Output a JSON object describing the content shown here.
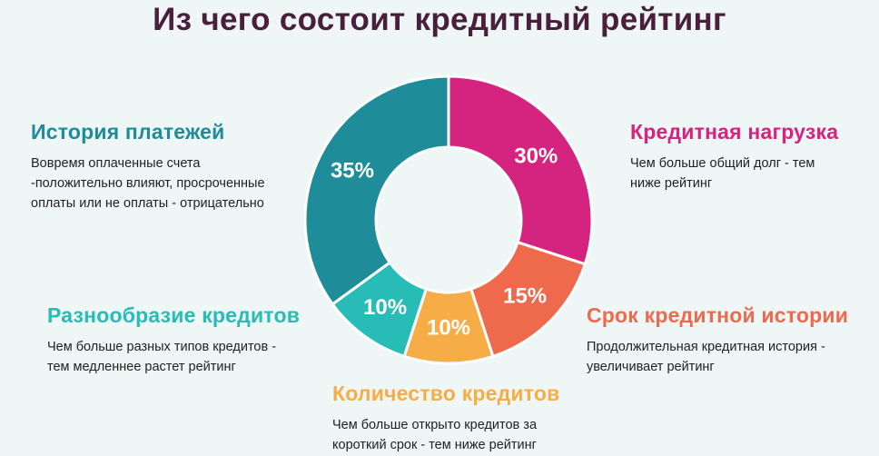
{
  "title": "Из чего состоит кредитный рейтинг",
  "chart_data": {
    "type": "pie",
    "slices": [
      {
        "name": "Кредитная нагрузка",
        "value": 30,
        "label": "30%",
        "color": "#d4247f"
      },
      {
        "name": "Срок кредитной истории",
        "value": 15,
        "label": "15%",
        "color": "#ef6a4d"
      },
      {
        "name": "Количество кредитов",
        "value": 10,
        "label": "10%",
        "color": "#f6ad48"
      },
      {
        "name": "Разнообразие кредитов",
        "value": 10,
        "label": "10%",
        "color": "#27bdb6"
      },
      {
        "name": "История платежей",
        "value": 35,
        "label": "35%",
        "color": "#1f8c9a"
      }
    ]
  },
  "blocks": {
    "history": {
      "heading": "История платежей",
      "color": "#1f8c9a",
      "lines": [
        "Вовремя оплаченные счета",
        "-положительно влияют, просроченные",
        "оплаты или не оплаты - отрицательно"
      ]
    },
    "load": {
      "heading": "Кредитная нагрузка",
      "color": "#d4247f",
      "lines": [
        "Чем больше общий долг - тем",
        "ниже рейтинг"
      ]
    },
    "variety": {
      "heading": "Разнообразие кредитов",
      "color": "#27bdb6",
      "lines": [
        "Чем больше разных типов кредитов  -",
        "тем медленнее растет рейтинг"
      ]
    },
    "term": {
      "heading": "Срок кредитной истории",
      "color": "#ef6a4d",
      "lines": [
        "Продолжительная кредитная история  -",
        "увеличивает рейтинг"
      ]
    },
    "count": {
      "heading": "Количество кредитов",
      "color": "#f6ad48",
      "lines": [
        "Чем больше открыто кредитов за",
        "короткий срок - тем ниже рейтинг"
      ]
    }
  }
}
